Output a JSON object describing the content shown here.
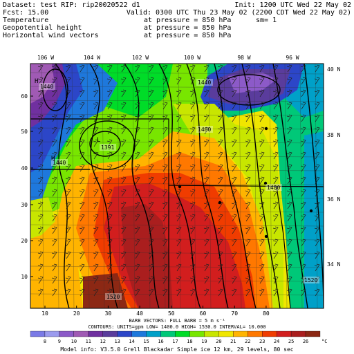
{
  "header": {
    "dataset_line": "Dataset: test   RIP: rip20020522 d1",
    "init_line": "Init: 1200 UTC Wed 22 May 02",
    "fcst_line": "Fcst:    15.00",
    "valid_line": "Valid: 0300 UTC Thu 23 May 02 (2200 CDT Wed 22 May 02)",
    "fields": [
      {
        "name": "Temperature",
        "pressure": "at pressure =  850 hPa",
        "extra": "sm= 1"
      },
      {
        "name": "Geopotential height",
        "pressure": "at pressure =  850 hPa",
        "extra": ""
      },
      {
        "name": "Horizontal wind vectors",
        "pressure": "at pressure =  850 hPa",
        "extra": ""
      }
    ]
  },
  "axes": {
    "top_lon_labels": [
      "106 W",
      "104 W",
      "102 W",
      "100 W",
      "98 W",
      "96 W"
    ],
    "right_lat_labels": [
      "40 N",
      "38 N",
      "36 N",
      "34 N"
    ],
    "left_grid_labels": [
      "60",
      "50",
      "40",
      "30",
      "20",
      "10"
    ],
    "bottom_grid_labels": [
      "10",
      "20",
      "30",
      "40",
      "50",
      "60",
      "70",
      "80"
    ]
  },
  "contour_labels": [
    {
      "text": "1440"
    },
    {
      "text": "1440"
    },
    {
      "text": "1391"
    },
    {
      "text": "1440"
    },
    {
      "text": "1480"
    },
    {
      "text": "1480"
    },
    {
      "text": "1520"
    },
    {
      "text": "1520"
    }
  ],
  "pressure_marks": {
    "low": "L",
    "high": "H"
  },
  "footer": {
    "barb_line": "BARB VECTORS:  FULL BARB = 5 m s⁻¹",
    "contours_line": "CONTOURS:  UNITS=gpm    LOW=   1400.0      HIGH=   1530.0       INTERVAL=    10.000",
    "model_info": "Model info: V3.5.0   Grell      Blackadar   Simple ice    12 km,  29 levels,   80 sec"
  },
  "colorbar": {
    "unit": "°C",
    "labels": [
      "8",
      "9",
      "10",
      "11",
      "12",
      "13",
      "14",
      "15",
      "16",
      "17",
      "18",
      "19",
      "20",
      "21",
      "22",
      "23",
      "24",
      "25",
      "26"
    ],
    "colors": [
      "#7a7ae6",
      "#9b9bee",
      "#8c5ac8",
      "#a05ab4",
      "#7030a0",
      "#5a3c9c",
      "#2c46c8",
      "#1e78dc",
      "#00a0c8",
      "#00c878",
      "#00dc28",
      "#78e600",
      "#c8e600",
      "#f0e600",
      "#ffb400",
      "#ff7800",
      "#f03c00",
      "#d21e1e",
      "#aa1e1e",
      "#8c2814"
    ]
  }
}
